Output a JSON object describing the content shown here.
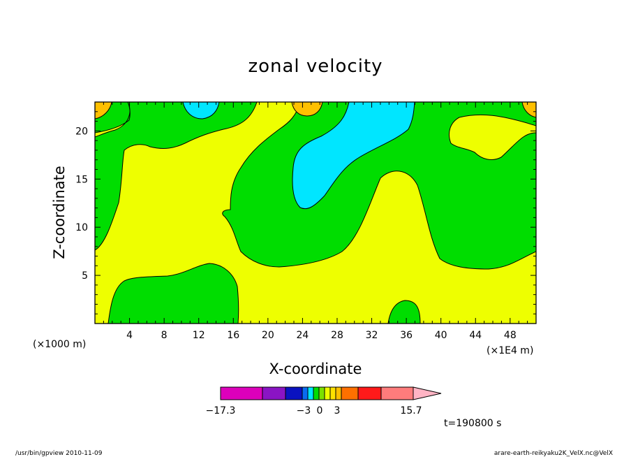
{
  "chart_data": {
    "type": "heatmap",
    "title": "zonal velocity",
    "xlabel": "X-coordinate",
    "ylabel": "Z-coordinate",
    "x_unit_left": "(×1000 m)",
    "x_unit_right": "(×1E4 m)",
    "x_ticks": [
      "4",
      "8",
      "12",
      "16",
      "20",
      "24",
      "28",
      "32",
      "36",
      "40",
      "44",
      "48"
    ],
    "x_tick_values": [
      4,
      8,
      12,
      16,
      20,
      24,
      28,
      32,
      36,
      40,
      44,
      48
    ],
    "y_ticks": [
      "5",
      "10",
      "15",
      "20"
    ],
    "y_tick_values": [
      5,
      10,
      15,
      20
    ],
    "xlim": [
      0,
      51
    ],
    "ylim": [
      0,
      23
    ],
    "colorbar": {
      "tick_labels": [
        "−17.3",
        "−3",
        "0",
        "3",
        "15.7"
      ],
      "colors": [
        "#dd00bb",
        "#8a14c4",
        "#0a12c0",
        "#0a6cf0",
        "#00e6ff",
        "#00dd00",
        "#7ce000",
        "#eeff00",
        "#ffe200",
        "#ffc000",
        "#ff7000",
        "#ff1a1a",
        "#ff7c7c",
        "#ffb4c4"
      ]
    },
    "regions": [
      {
        "value_band": "0 to 1",
        "color": "#eeff00"
      },
      {
        "value_band": "-1 to 0",
        "color": "#00dd00"
      },
      {
        "value_band": "-2 to -1",
        "color": "#00e6ff"
      },
      {
        "value_band": "1 to 2",
        "color": "#ffc000"
      }
    ]
  },
  "time_label": "t=190800 s",
  "footer_left": "/usr/bin/gpview  2010-11-09",
  "footer_right": "arare-earth-reikyaku2K_VelX.nc@VelX"
}
